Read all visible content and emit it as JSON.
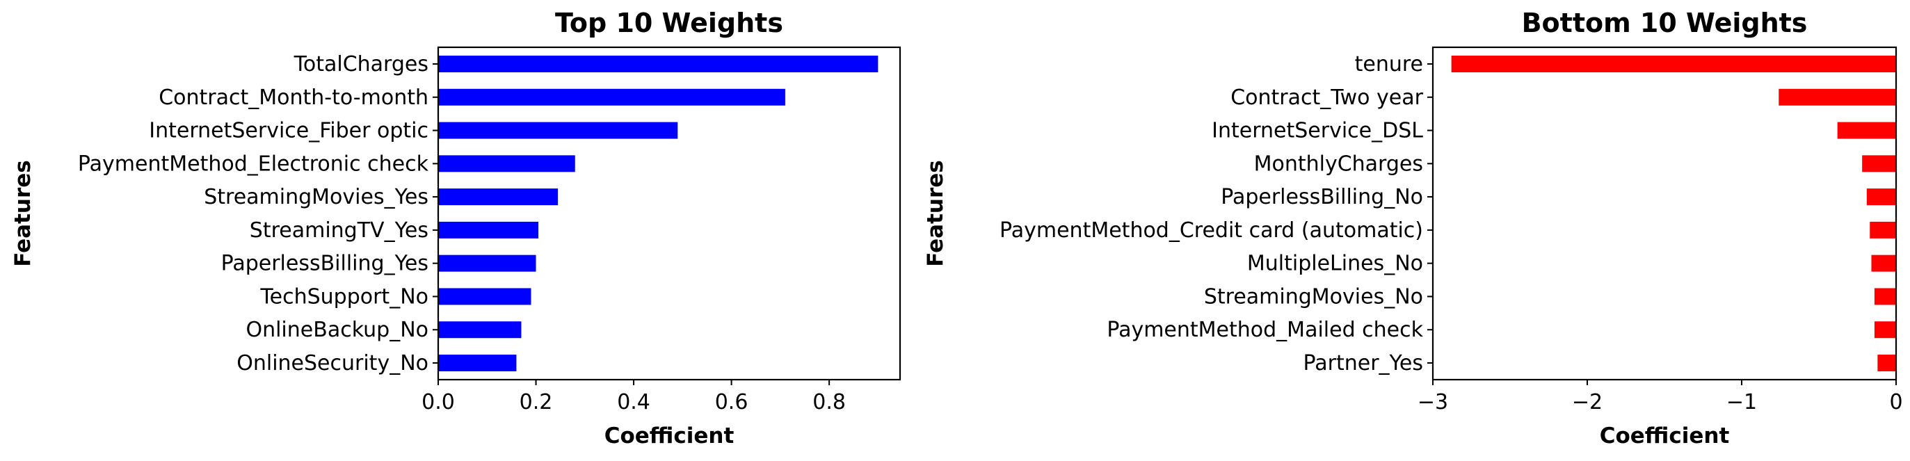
{
  "chart_data": [
    {
      "type": "bar",
      "orientation": "horizontal",
      "title": "Top 10 Weights",
      "xlabel": "Coefficient",
      "ylabel": "Features",
      "xlim": [
        0,
        0.945
      ],
      "xticks": [
        0.0,
        0.2,
        0.4,
        0.6,
        0.8
      ],
      "xtick_labels": [
        "0.0",
        "0.2",
        "0.4",
        "0.6",
        "0.8"
      ],
      "grid": false,
      "color": "#0000ff",
      "categories": [
        "TotalCharges",
        "Contract_Month-to-month",
        "InternetService_Fiber optic",
        "PaymentMethod_Electronic check",
        "StreamingMovies_Yes",
        "StreamingTV_Yes",
        "PaperlessBilling_Yes",
        "TechSupport_No",
        "OnlineBackup_No",
        "OnlineSecurity_No"
      ],
      "values": [
        0.9,
        0.71,
        0.49,
        0.28,
        0.245,
        0.205,
        0.2,
        0.19,
        0.17,
        0.16
      ]
    },
    {
      "type": "bar",
      "orientation": "horizontal",
      "title": "Bottom 10 Weights",
      "xlabel": "Coefficient",
      "ylabel": "Features",
      "xlim": [
        -3.0,
        0.0
      ],
      "xticks": [
        -3,
        -2,
        -1,
        0
      ],
      "xtick_labels": [
        "−3",
        "−2",
        "−1",
        "0"
      ],
      "grid": false,
      "color": "#ff0000",
      "categories": [
        "tenure",
        "Contract_Two year",
        "InternetService_DSL",
        "MonthlyCharges",
        "PaperlessBilling_No",
        "PaymentMethod_Credit card (automatic)",
        "MultipleLines_No",
        "StreamingMovies_No",
        "PaymentMethod_Mailed check",
        "Partner_Yes"
      ],
      "values": [
        -2.88,
        -0.76,
        -0.38,
        -0.22,
        -0.19,
        -0.17,
        -0.16,
        -0.14,
        -0.14,
        -0.12
      ]
    }
  ]
}
